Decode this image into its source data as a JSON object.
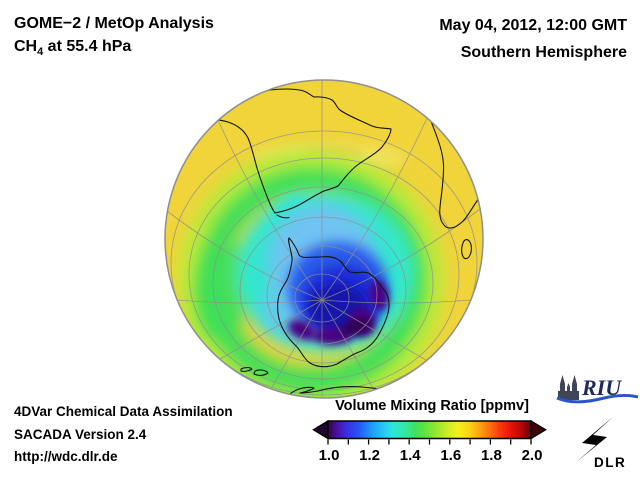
{
  "title_block": {
    "line1": "GOME−2 / MetOp Analysis",
    "line2_prefix": "CH",
    "line2_sub": "4",
    "line2_suffix": " at 55.4 hPa"
  },
  "datetime_block": {
    "line1": "May 04, 2012, 12:00 GMT",
    "line2": "Southern Hemisphere"
  },
  "footer_block": {
    "line1": "4DVar Chemical Data Assimilation",
    "line2": "SACADA Version 2.4",
    "line3": "http://wdc.dlr.de"
  },
  "colorbar": {
    "title": "Volume Mixing Ratio [ppmv]",
    "tick_labels": [
      "1.0",
      "1.2",
      "1.4",
      "1.6",
      "1.8",
      "2.0"
    ],
    "minor_tick_count": 11,
    "left_arrow_color": "#1f0630",
    "right_arrow_color": "#400308",
    "gradient_stops": [
      [
        0,
        "#30083c"
      ],
      [
        4,
        "#48109a"
      ],
      [
        9,
        "#3c2de2"
      ],
      [
        15,
        "#2356f2"
      ],
      [
        22,
        "#21a0f8"
      ],
      [
        28,
        "#28ccf4"
      ],
      [
        32,
        "#2ee8d8"
      ],
      [
        38,
        "#34e8a0"
      ],
      [
        43,
        "#3fe05c"
      ],
      [
        48,
        "#62e43c"
      ],
      [
        54,
        "#9ae830"
      ],
      [
        60,
        "#d6ee24"
      ],
      [
        64,
        "#f4f01c"
      ],
      [
        70,
        "#fcd014"
      ],
      [
        75,
        "#fca012"
      ],
      [
        80,
        "#fc6c10"
      ],
      [
        85,
        "#f8380c"
      ],
      [
        90,
        "#e81408"
      ],
      [
        95,
        "#b80808"
      ],
      [
        100,
        "#66040a"
      ]
    ]
  },
  "globe": {
    "colors": {
      "base_yellow": "#f0d43a",
      "pale_band": "#f6ef86",
      "orange_tinge": "#f2a428",
      "yellow_green": "#b9ea3a",
      "green": "#3bdf5a",
      "cyan": "#31e7cf",
      "light_blue": "#6fc3f2",
      "blue": "#2c5cea",
      "deep_blue": "#1c2ad6",
      "darkest_blue": "#1219ad",
      "violet": "#4c0082",
      "dark_violet": "#300055",
      "graticule": "#8f8f8f",
      "coast": "#141414",
      "rim": "#8f8f8f"
    }
  },
  "logos": {
    "riu_text": "RIU",
    "riu_text_color": "#1c2a5e",
    "riu_cathedral_color": "#3e4557",
    "riu_wave_color": "#2a54cc",
    "dlr_text": "DLR",
    "dlr_color": "#000000"
  },
  "chart_data": {
    "type": "heatmap",
    "title": "GOME−2 / MetOp Analysis — CH4 at 55.4 hPa",
    "datetime": "May 04, 2012, 12:00 GMT",
    "projection": "Southern Hemisphere orthographic globe centered near the South Pole",
    "legend_title": "Volume Mixing Ratio [ppmv]",
    "scale_min": 1.0,
    "scale_max": 2.0,
    "scale_ticks": [
      1.0,
      1.2,
      1.4,
      1.6,
      1.8,
      2.0
    ],
    "approx_field_readings_ppmv": {
      "tropical_rim_yellow": 1.65,
      "midlatitude_yellow_green_band": 1.55,
      "midlatitude_green_band": 1.45,
      "subpolar_cyan_ring": 1.33,
      "light_blue_region_north_of_pole": 1.22,
      "polar_blue_over_antarctica": 1.13,
      "deep_blue_core": 1.07,
      "dark_violet_minimum_crescent": 1.0
    },
    "visible_landmasses": [
      "South America",
      "southern Africa",
      "Madagascar",
      "Antarctica",
      "New Zealand",
      "southern Australia"
    ]
  }
}
